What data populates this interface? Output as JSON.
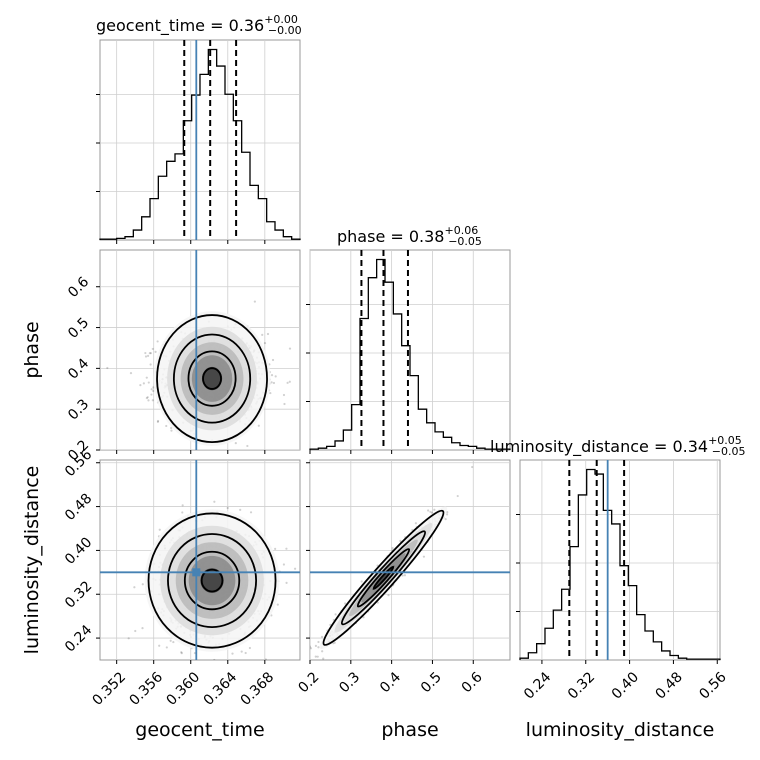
{
  "chart_data": {
    "type": "corner",
    "parameters": [
      "geocent_time",
      "phase",
      "luminosity_distance"
    ],
    "truth_color": "#4682b4",
    "truths": {
      "geocent_time": 0.3606,
      "phase": null,
      "luminosity_distance": 0.36
    },
    "grid": true,
    "titles": {
      "geocent_time": {
        "prefix": "geocent_time = 0.36",
        "plus": "+0.00",
        "minus": "−0.00"
      },
      "phase": {
        "prefix": "phase = 0.38",
        "plus": "+0.06",
        "minus": "−0.05"
      },
      "luminosity_distance": {
        "prefix": "luminosity_distance = 0.34",
        "plus": "+0.05",
        "minus": "−0.05"
      }
    },
    "axes": {
      "geocent_time": {
        "range": [
          0.3502,
          0.3718
        ],
        "ticks": [
          0.352,
          0.356,
          0.36,
          0.364,
          0.368
        ],
        "tick_labels": [
          "0.352",
          "0.356",
          "0.360",
          "0.364",
          "0.368"
        ]
      },
      "phase": {
        "range": [
          0.2,
          0.69
        ],
        "ticks": [
          0.2,
          0.3,
          0.4,
          0.5,
          0.6
        ],
        "tick_labels": [
          "0.2",
          "0.3",
          "0.4",
          "0.5",
          "0.6"
        ]
      },
      "luminosity_distance": {
        "range": [
          0.2,
          0.565
        ],
        "ticks": [
          0.24,
          0.32,
          0.4,
          0.48,
          0.56
        ],
        "tick_labels": [
          "0.24",
          "0.32",
          "0.40",
          "0.48",
          "0.56"
        ]
      }
    },
    "quantiles": {
      "geocent_time": [
        0.3593,
        0.3621,
        0.3649
      ],
      "phase": [
        0.326,
        0.38,
        0.44
      ],
      "luminosity_distance": [
        0.29,
        0.34,
        0.39
      ]
    },
    "hist_geocent_time": {
      "edges": [
        0.3502,
        0.3511,
        0.352,
        0.3529,
        0.3538,
        0.3547,
        0.3556,
        0.3565,
        0.3574,
        0.3583,
        0.3592,
        0.3601,
        0.361,
        0.3619,
        0.3628,
        0.3637,
        0.3646,
        0.3655,
        0.3664,
        0.3673,
        0.3682,
        0.3691,
        0.37,
        0.3709,
        0.3718
      ],
      "counts": [
        1,
        1,
        2,
        4,
        12,
        28,
        50,
        77,
        95,
        104,
        144,
        175,
        200,
        230,
        210,
        176,
        144,
        106,
        66,
        50,
        22,
        12,
        4,
        1
      ]
    },
    "hist_phase": {
      "edges": [
        0.2,
        0.2204,
        0.2408,
        0.2613,
        0.2817,
        0.3021,
        0.3225,
        0.3429,
        0.3633,
        0.3838,
        0.4042,
        0.4246,
        0.445,
        0.4654,
        0.4858,
        0.5063,
        0.5267,
        0.5471,
        0.5675,
        0.5879,
        0.6083,
        0.6288,
        0.6492,
        0.6696,
        0.69
      ],
      "counts": [
        1,
        2,
        4,
        10,
        22,
        50,
        145,
        190,
        210,
        185,
        150,
        115,
        82,
        45,
        30,
        20,
        14,
        8,
        5,
        4,
        2,
        1,
        1,
        1
      ]
    },
    "hist_luminosity_distance": {
      "edges": [
        0.2,
        0.2152,
        0.2304,
        0.2456,
        0.2608,
        0.276,
        0.2913,
        0.3065,
        0.3217,
        0.3369,
        0.3521,
        0.3673,
        0.3825,
        0.3977,
        0.4129,
        0.4281,
        0.4433,
        0.4585,
        0.4738,
        0.489,
        0.5042,
        0.5194,
        0.5346,
        0.5498,
        0.565
      ],
      "counts": [
        2,
        8,
        18,
        35,
        55,
        78,
        125,
        182,
        210,
        205,
        165,
        150,
        104,
        82,
        50,
        32,
        20,
        10,
        5,
        2,
        1,
        1,
        1,
        1
      ]
    },
    "pair_geocent_time_phase": {
      "center": [
        0.3623,
        0.375
      ],
      "sigma": [
        0.0028,
        0.055
      ],
      "rho": 0.0
    },
    "pair_geocent_time_luminosity_distance": {
      "center": [
        0.3623,
        0.345
      ],
      "sigma": [
        0.0028,
        0.05
      ],
      "rho": 0.0
    },
    "pair_phase_luminosity_distance": {
      "center": [
        0.38,
        0.35
      ],
      "sigma": [
        0.06,
        0.05
      ],
      "rho": 0.97
    }
  }
}
